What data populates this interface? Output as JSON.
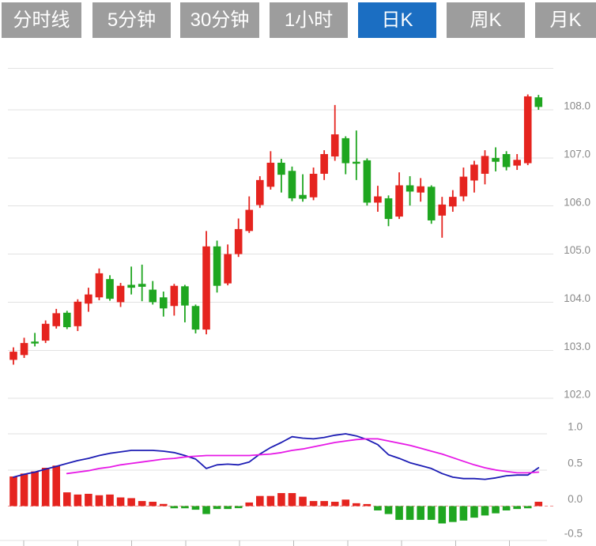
{
  "toolbar": {
    "buttons": [
      {
        "label": "分时线",
        "active": false
      },
      {
        "label": "5分钟",
        "active": false
      },
      {
        "label": "30分钟",
        "active": false
      },
      {
        "label": "1小时",
        "active": false
      },
      {
        "label": "日K",
        "active": true
      },
      {
        "label": "周K",
        "active": false
      },
      {
        "label": "月K",
        "active": false
      }
    ]
  },
  "colors": {
    "up": "#e5241f",
    "down": "#1fa620",
    "dif_line": "#1c1cb4",
    "dea_line": "#e619e6",
    "grid": "#e2e2e2",
    "zero_line": "#ef8f8f",
    "axis_label": "#8a8a8a",
    "tick": "#b8b8b8",
    "button_active": "#1b6ec2",
    "button_inactive": "#9d9d9d",
    "button_text": "#ffffff"
  },
  "chart_data": [
    {
      "type": "candlestick",
      "panel": "price",
      "title": "",
      "grid": true,
      "y_ticks": [
        108.0,
        107.0,
        106.0,
        105.0,
        104.0,
        103.0,
        102.0
      ],
      "ylim": [
        101.8,
        108.6
      ],
      "candles_format": [
        "open",
        "high",
        "low",
        "close"
      ],
      "candles": [
        [
          102.8,
          103.06,
          102.7,
          102.97
        ],
        [
          102.9,
          103.26,
          102.84,
          103.15
        ],
        [
          103.18,
          103.36,
          103.08,
          103.14
        ],
        [
          103.2,
          103.62,
          103.15,
          103.55
        ],
        [
          103.5,
          103.86,
          103.45,
          103.77
        ],
        [
          103.78,
          103.82,
          103.44,
          103.48
        ],
        [
          103.5,
          104.06,
          103.4,
          104.01
        ],
        [
          103.97,
          104.3,
          103.8,
          104.16
        ],
        [
          104.1,
          104.7,
          104.04,
          104.6
        ],
        [
          104.48,
          104.56,
          104.03,
          104.07
        ],
        [
          104.0,
          104.4,
          103.9,
          104.34
        ],
        [
          104.36,
          104.74,
          104.16,
          104.3
        ],
        [
          104.38,
          104.78,
          104.02,
          104.32
        ],
        [
          104.26,
          104.44,
          103.95,
          104.0
        ],
        [
          104.1,
          104.22,
          103.7,
          103.87
        ],
        [
          103.92,
          104.38,
          103.72,
          104.34
        ],
        [
          104.33,
          104.36,
          103.58,
          103.93
        ],
        [
          103.92,
          103.95,
          103.35,
          103.43
        ],
        [
          103.43,
          105.48,
          103.33,
          105.16
        ],
        [
          105.16,
          105.28,
          104.2,
          104.34
        ],
        [
          104.39,
          105.2,
          104.35,
          105.0
        ],
        [
          105.0,
          105.74,
          104.94,
          105.52
        ],
        [
          105.48,
          106.2,
          105.44,
          105.92
        ],
        [
          106.02,
          106.62,
          105.96,
          106.54
        ],
        [
          106.4,
          107.14,
          106.34,
          106.9
        ],
        [
          106.9,
          106.98,
          106.28,
          106.65
        ],
        [
          106.73,
          106.82,
          106.1,
          106.16
        ],
        [
          106.23,
          106.66,
          106.09,
          106.15
        ],
        [
          106.18,
          106.8,
          106.12,
          106.67
        ],
        [
          106.67,
          107.16,
          106.54,
          107.08
        ],
        [
          107.03,
          108.1,
          106.94,
          107.49
        ],
        [
          107.41,
          107.45,
          106.66,
          106.89
        ],
        [
          106.92,
          107.57,
          106.54,
          106.88
        ],
        [
          106.95,
          106.99,
          106.01,
          106.07
        ],
        [
          106.07,
          106.42,
          105.88,
          106.2
        ],
        [
          106.16,
          106.22,
          105.58,
          105.73
        ],
        [
          105.78,
          106.7,
          105.73,
          106.43
        ],
        [
          106.43,
          106.62,
          106.01,
          106.3
        ],
        [
          106.28,
          106.58,
          106.09,
          106.41
        ],
        [
          106.4,
          106.43,
          105.63,
          105.7
        ],
        [
          105.8,
          106.19,
          105.34,
          106.03
        ],
        [
          105.99,
          106.33,
          105.88,
          106.19
        ],
        [
          106.2,
          106.8,
          106.1,
          106.61
        ],
        [
          106.53,
          106.94,
          106.28,
          106.86
        ],
        [
          106.67,
          107.16,
          106.45,
          107.04
        ],
        [
          107.0,
          107.22,
          106.72,
          106.92
        ],
        [
          107.08,
          107.14,
          106.74,
          106.81
        ],
        [
          106.84,
          107.08,
          106.75,
          106.96
        ],
        [
          106.89,
          108.32,
          106.85,
          108.28
        ],
        [
          108.26,
          108.31,
          108.0,
          108.06
        ]
      ]
    },
    {
      "type": "bar",
      "panel": "macd",
      "title": "",
      "grid": true,
      "y_ticks": [
        1.0,
        0.5,
        0.0,
        -0.5
      ],
      "ylim": [
        -0.5,
        1.1
      ],
      "histogram": [
        0.41,
        0.45,
        0.48,
        0.53,
        0.56,
        0.19,
        0.16,
        0.17,
        0.15,
        0.16,
        0.12,
        0.11,
        0.07,
        0.06,
        0.03,
        -0.03,
        -0.03,
        -0.05,
        -0.11,
        -0.04,
        -0.04,
        -0.02,
        0.05,
        0.14,
        0.14,
        0.18,
        0.18,
        0.13,
        0.07,
        0.07,
        0.06,
        0.09,
        0.04,
        0.02,
        -0.06,
        -0.11,
        -0.19,
        -0.19,
        -0.19,
        -0.19,
        -0.24,
        -0.22,
        -0.2,
        -0.16,
        -0.13,
        -0.1,
        -0.06,
        -0.04,
        -0.03,
        0.06
      ],
      "series": [
        {
          "name": "DIF",
          "color_key": "dif_line",
          "values": [
            0.4,
            0.44,
            0.47,
            0.51,
            0.55,
            0.59,
            0.63,
            0.66,
            0.7,
            0.73,
            0.75,
            0.77,
            0.77,
            0.77,
            0.76,
            0.74,
            0.7,
            0.65,
            0.52,
            0.57,
            0.58,
            0.57,
            0.61,
            0.72,
            0.81,
            0.88,
            0.96,
            0.94,
            0.93,
            0.95,
            0.98,
            1.0,
            0.97,
            0.92,
            0.85,
            0.71,
            0.66,
            0.6,
            0.56,
            0.52,
            0.45,
            0.4,
            0.38,
            0.38,
            0.37,
            0.39,
            0.42,
            0.43,
            0.43,
            0.53
          ]
        },
        {
          "name": "DEA",
          "color_key": "dea_line",
          "values": [
            null,
            null,
            null,
            null,
            null,
            0.45,
            0.47,
            0.49,
            0.52,
            0.54,
            0.57,
            0.59,
            0.61,
            0.63,
            0.65,
            0.66,
            0.68,
            0.69,
            0.7,
            0.7,
            0.7,
            0.7,
            0.7,
            0.71,
            0.72,
            0.74,
            0.77,
            0.79,
            0.82,
            0.85,
            0.88,
            0.9,
            0.92,
            0.93,
            0.93,
            0.9,
            0.87,
            0.84,
            0.8,
            0.76,
            0.72,
            0.67,
            0.62,
            0.57,
            0.53,
            0.5,
            0.48,
            0.46,
            0.46,
            0.47
          ]
        }
      ]
    }
  ]
}
